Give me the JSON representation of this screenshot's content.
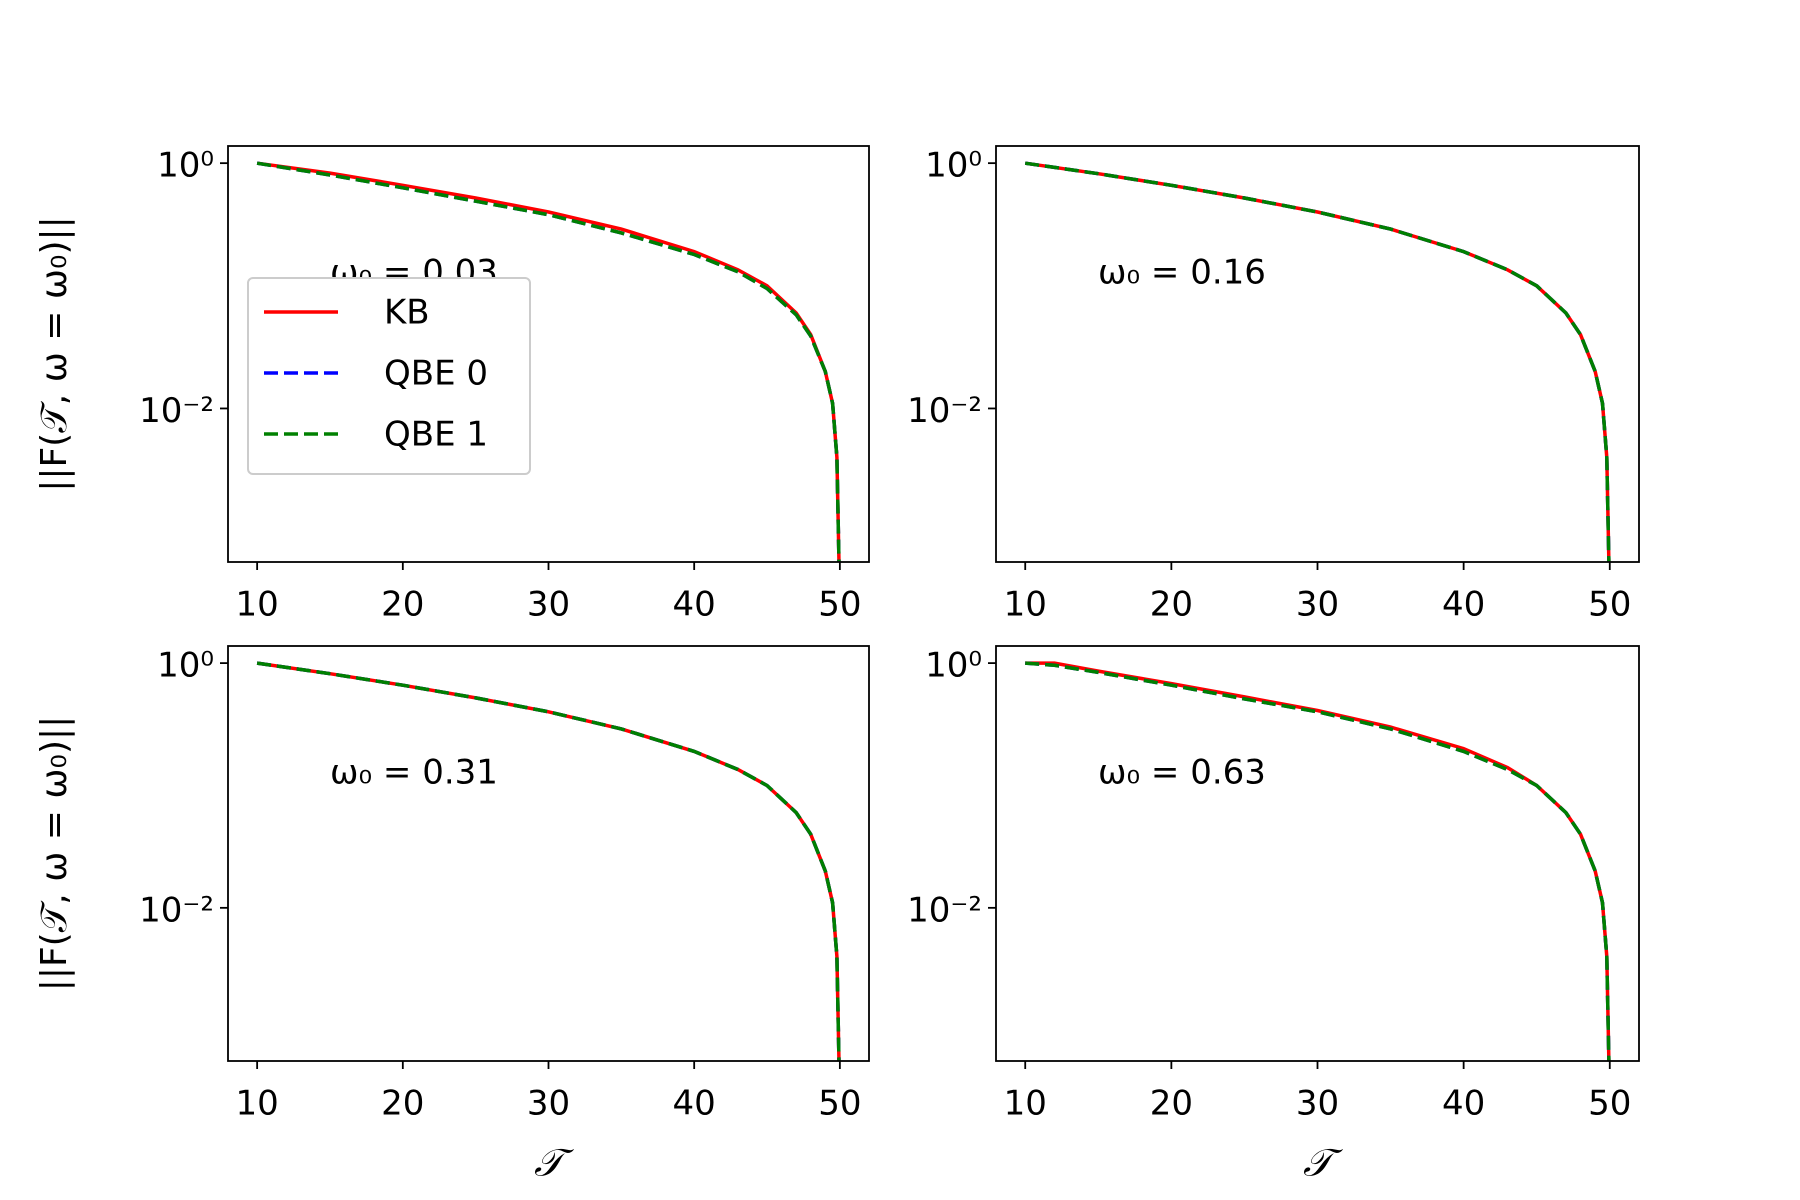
{
  "chart_data": [
    {
      "type": "line",
      "annotation": "ω₀ = 0.03",
      "ylabel": "||F(𝒯, ω = ω₀)||",
      "yscale": "log",
      "legend": "center left",
      "xlim": [
        8,
        52
      ],
      "xticks": [
        10,
        20,
        30,
        40,
        50
      ],
      "ylim": [
        0.00056,
        1.38
      ],
      "yticks": [
        {
          "value": 1,
          "label": "10⁰"
        },
        {
          "value": 0.01,
          "label": "10⁻²"
        }
      ],
      "x": [
        10,
        15,
        20,
        25,
        30,
        35,
        40,
        43,
        45,
        47,
        48,
        49,
        49.5,
        49.8,
        49.95
      ],
      "series": [
        {
          "name": "KB",
          "color": "#ff0000",
          "style": "solid",
          "values": [
            1,
            0.83,
            0.66,
            0.52,
            0.4,
            0.29,
            0.19,
            0.135,
            0.1,
            0.06,
            0.04,
            0.02,
            0.011,
            0.004,
            0.0005
          ]
        },
        {
          "name": "QBE 0",
          "color": "#0000ff",
          "style": "dashed",
          "values": [
            1,
            0.8,
            0.63,
            0.49,
            0.38,
            0.27,
            0.18,
            0.13,
            0.095,
            0.058,
            0.039,
            0.02,
            0.011,
            0.004,
            0.0005
          ]
        },
        {
          "name": "QBE 1",
          "color": "#008000",
          "style": "dashed",
          "values": [
            1,
            0.8,
            0.63,
            0.49,
            0.38,
            0.27,
            0.18,
            0.13,
            0.095,
            0.058,
            0.039,
            0.02,
            0.011,
            0.004,
            0.0005
          ]
        }
      ]
    },
    {
      "type": "line",
      "annotation": "ω₀ = 0.16",
      "yscale": "log",
      "xlim": [
        8,
        52
      ],
      "xticks": [
        10,
        20,
        30,
        40,
        50
      ],
      "ylim": [
        0.00056,
        1.38
      ],
      "yticks": [
        {
          "value": 1,
          "label": "10⁰"
        },
        {
          "value": 0.01,
          "label": "10⁻²"
        }
      ],
      "x": [
        10,
        15,
        20,
        25,
        30,
        35,
        40,
        43,
        45,
        47,
        48,
        49,
        49.5,
        49.8,
        49.95
      ],
      "series": [
        {
          "name": "KB",
          "color": "#ff0000",
          "style": "solid",
          "values": [
            1,
            0.82,
            0.66,
            0.52,
            0.4,
            0.29,
            0.19,
            0.135,
            0.1,
            0.06,
            0.04,
            0.02,
            0.011,
            0.004,
            0.0005
          ]
        },
        {
          "name": "QBE 0",
          "color": "#0000ff",
          "style": "dashed",
          "values": [
            1,
            0.82,
            0.66,
            0.52,
            0.4,
            0.29,
            0.19,
            0.135,
            0.1,
            0.06,
            0.04,
            0.02,
            0.011,
            0.004,
            0.0005
          ]
        },
        {
          "name": "QBE 1",
          "color": "#008000",
          "style": "dashed",
          "values": [
            1,
            0.82,
            0.66,
            0.52,
            0.4,
            0.29,
            0.19,
            0.135,
            0.1,
            0.06,
            0.04,
            0.02,
            0.011,
            0.004,
            0.0005
          ]
        }
      ]
    },
    {
      "type": "line",
      "annotation": "ω₀ = 0.31",
      "ylabel": "||F(𝒯, ω = ω₀)||",
      "xlabel": "𝒯",
      "yscale": "log",
      "xlim": [
        8,
        52
      ],
      "xticks": [
        10,
        20,
        30,
        40,
        50
      ],
      "ylim": [
        0.00056,
        1.38
      ],
      "yticks": [
        {
          "value": 1,
          "label": "10⁰"
        },
        {
          "value": 0.01,
          "label": "10⁻²"
        }
      ],
      "x": [
        10,
        15,
        20,
        25,
        30,
        35,
        40,
        43,
        45,
        47,
        48,
        49,
        49.5,
        49.8,
        49.95
      ],
      "series": [
        {
          "name": "KB",
          "color": "#ff0000",
          "style": "solid",
          "values": [
            1,
            0.82,
            0.66,
            0.52,
            0.4,
            0.29,
            0.19,
            0.135,
            0.1,
            0.06,
            0.04,
            0.02,
            0.011,
            0.004,
            0.0005
          ]
        },
        {
          "name": "QBE 0",
          "color": "#0000ff",
          "style": "dashed",
          "values": [
            1,
            0.82,
            0.66,
            0.52,
            0.4,
            0.29,
            0.19,
            0.135,
            0.1,
            0.06,
            0.04,
            0.02,
            0.011,
            0.004,
            0.0005
          ]
        },
        {
          "name": "QBE 1",
          "color": "#008000",
          "style": "dashed",
          "values": [
            1,
            0.82,
            0.66,
            0.52,
            0.4,
            0.29,
            0.19,
            0.135,
            0.1,
            0.06,
            0.04,
            0.02,
            0.011,
            0.004,
            0.0005
          ]
        }
      ]
    },
    {
      "type": "line",
      "annotation": "ω₀ = 0.63",
      "xlabel": "𝒯",
      "yscale": "log",
      "xlim": [
        8,
        52
      ],
      "xticks": [
        10,
        20,
        30,
        40,
        50
      ],
      "ylim": [
        0.00056,
        1.38
      ],
      "yticks": [
        {
          "value": 1,
          "label": "10⁰"
        },
        {
          "value": 0.01,
          "label": "10⁻²"
        }
      ],
      "x": [
        10,
        12,
        15,
        20,
        25,
        30,
        35,
        40,
        43,
        45,
        47,
        48,
        49,
        49.5,
        49.8,
        49.95
      ],
      "series": [
        {
          "name": "KB",
          "color": "#ff0000",
          "style": "solid",
          "values": [
            1,
            1,
            0.86,
            0.68,
            0.53,
            0.41,
            0.3,
            0.2,
            0.14,
            0.1,
            0.06,
            0.04,
            0.02,
            0.011,
            0.004,
            0.0005
          ]
        },
        {
          "name": "QBE 0",
          "color": "#0000ff",
          "style": "dashed",
          "values": [
            1,
            0.96,
            0.84,
            0.66,
            0.51,
            0.4,
            0.29,
            0.19,
            0.135,
            0.1,
            0.06,
            0.04,
            0.02,
            0.011,
            0.004,
            0.0005
          ]
        },
        {
          "name": "QBE 1",
          "color": "#008000",
          "style": "dashed",
          "values": [
            1,
            0.96,
            0.84,
            0.66,
            0.51,
            0.4,
            0.29,
            0.19,
            0.135,
            0.1,
            0.06,
            0.04,
            0.02,
            0.011,
            0.004,
            0.0005
          ]
        }
      ]
    }
  ]
}
